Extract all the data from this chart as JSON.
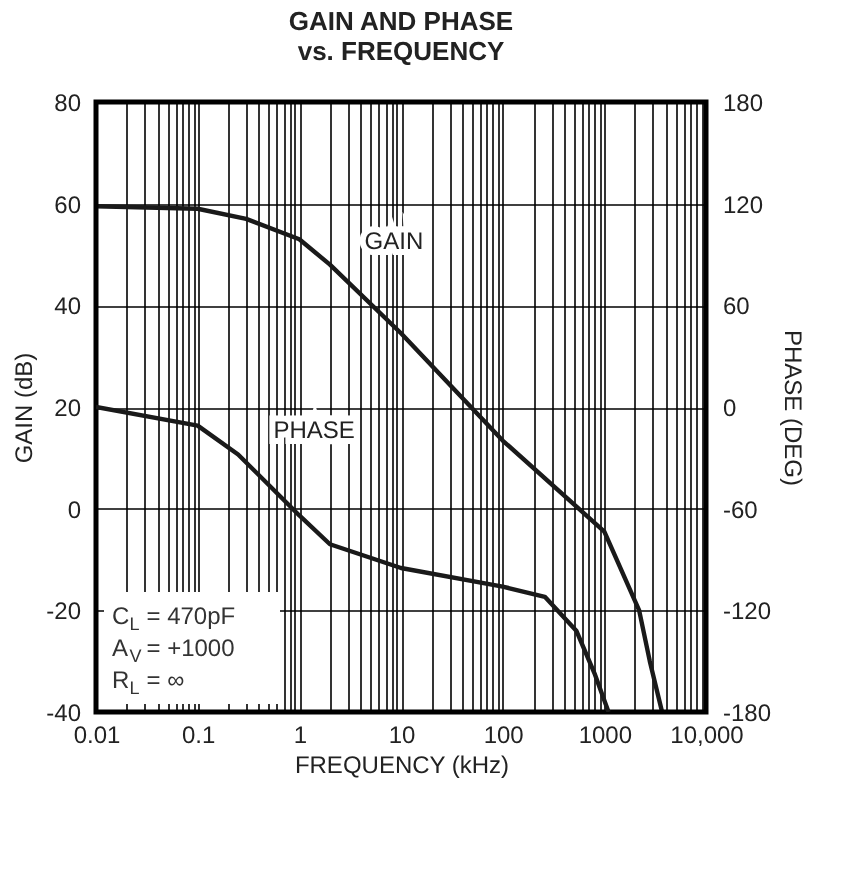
{
  "chart_data": {
    "type": "line",
    "title": "GAIN AND PHASE\nvs. FREQUENCY",
    "xlabel": "FREQUENCY (kHz)",
    "ylabel": "GAIN (dB)",
    "y2label": "PHASE (DEG)",
    "log": "x",
    "grid": true,
    "xlim": [
      0.01,
      10000
    ],
    "xticks": [
      0.01,
      0.1,
      1,
      10,
      100,
      1000,
      {
        "value": 10000,
        "label": "10,000"
      }
    ],
    "ylim": [
      -40,
      80
    ],
    "yticks": [
      -40,
      -20,
      0,
      20,
      40,
      60,
      80
    ],
    "y2lim": [
      -180,
      180
    ],
    "y2ticks": [
      -180,
      -120,
      -60,
      0,
      60,
      120,
      180
    ],
    "series": [
      {
        "name": "GAIN",
        "color": "#1a1a1a",
        "x": [
          0.01,
          0.1,
          0.3,
          1,
          2,
          10,
          100,
          1000,
          2200,
          2800,
          3700
        ],
        "values": [
          59.5,
          59,
          57,
          53,
          48,
          34.5,
          13.4,
          -4.5,
          -20,
          -30,
          -40
        ]
      },
      {
        "name": "PHASE",
        "color": "#1a1a1a",
        "axis": "y2",
        "x": [
          0.01,
          0.1,
          0.25,
          1,
          2,
          10,
          100,
          260,
          530,
          810,
          1100
        ],
        "values": [
          0,
          -11,
          -28,
          -64,
          -81,
          -95,
          -106,
          -112,
          -132,
          -158,
          -180
        ]
      }
    ],
    "annotations": [
      "C$_{L}$ = 470pF",
      "A$_{V}$ = +1000",
      "R$_{L}$ = ∞"
    ]
  }
}
